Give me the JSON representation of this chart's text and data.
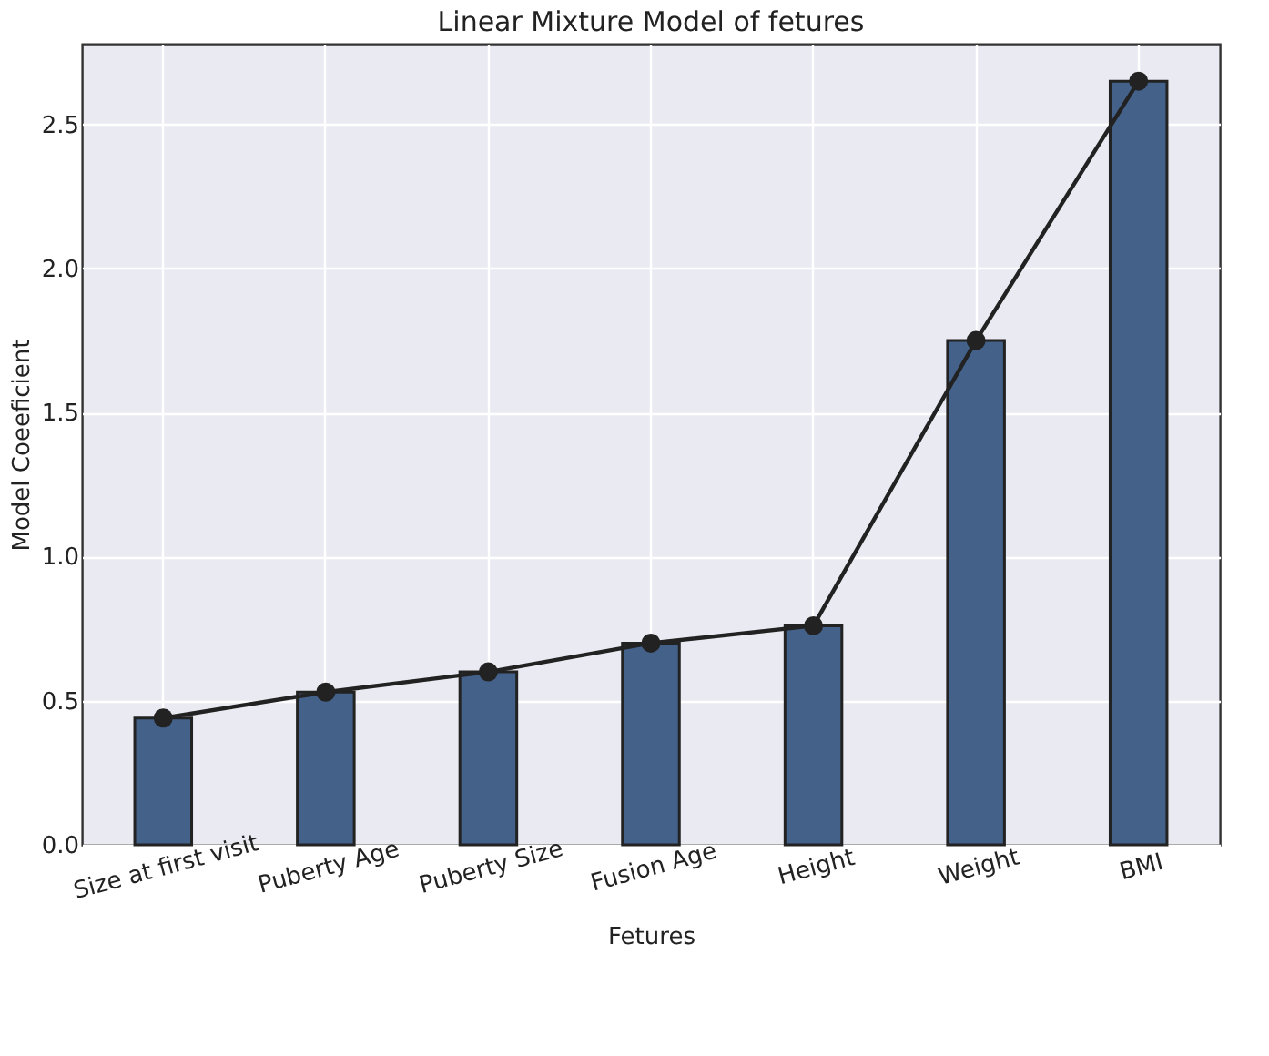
{
  "chart_data": {
    "type": "bar",
    "title": "Linear Mixture Model of fetures",
    "xlabel": "Fetures",
    "ylabel": "Model Coeeficient",
    "categories": [
      "Size at first visit",
      "Puberty Age",
      "Puberty Size",
      "Fusion Age",
      "Height",
      "Weight",
      "BMI"
    ],
    "series": [
      {
        "color": "#44618a",
        "values": [
          0.44,
          0.53,
          0.6,
          0.7,
          0.76,
          1.75,
          2.65
        ]
      },
      {
        "type": "line",
        "color": "#222222",
        "marker": "circle",
        "line_style": "solid",
        "values": [
          0.44,
          0.53,
          0.6,
          0.7,
          0.76,
          1.75,
          2.65
        ]
      }
    ],
    "ylim": [
      0,
      2.78
    ],
    "yticks": [
      {
        "value": 0,
        "label": "0.0"
      },
      0.5,
      {
        "value": 1,
        "label": "1.0"
      },
      1.5,
      {
        "value": 2,
        "label": "2.0"
      },
      2.5
    ],
    "grid": true
  }
}
